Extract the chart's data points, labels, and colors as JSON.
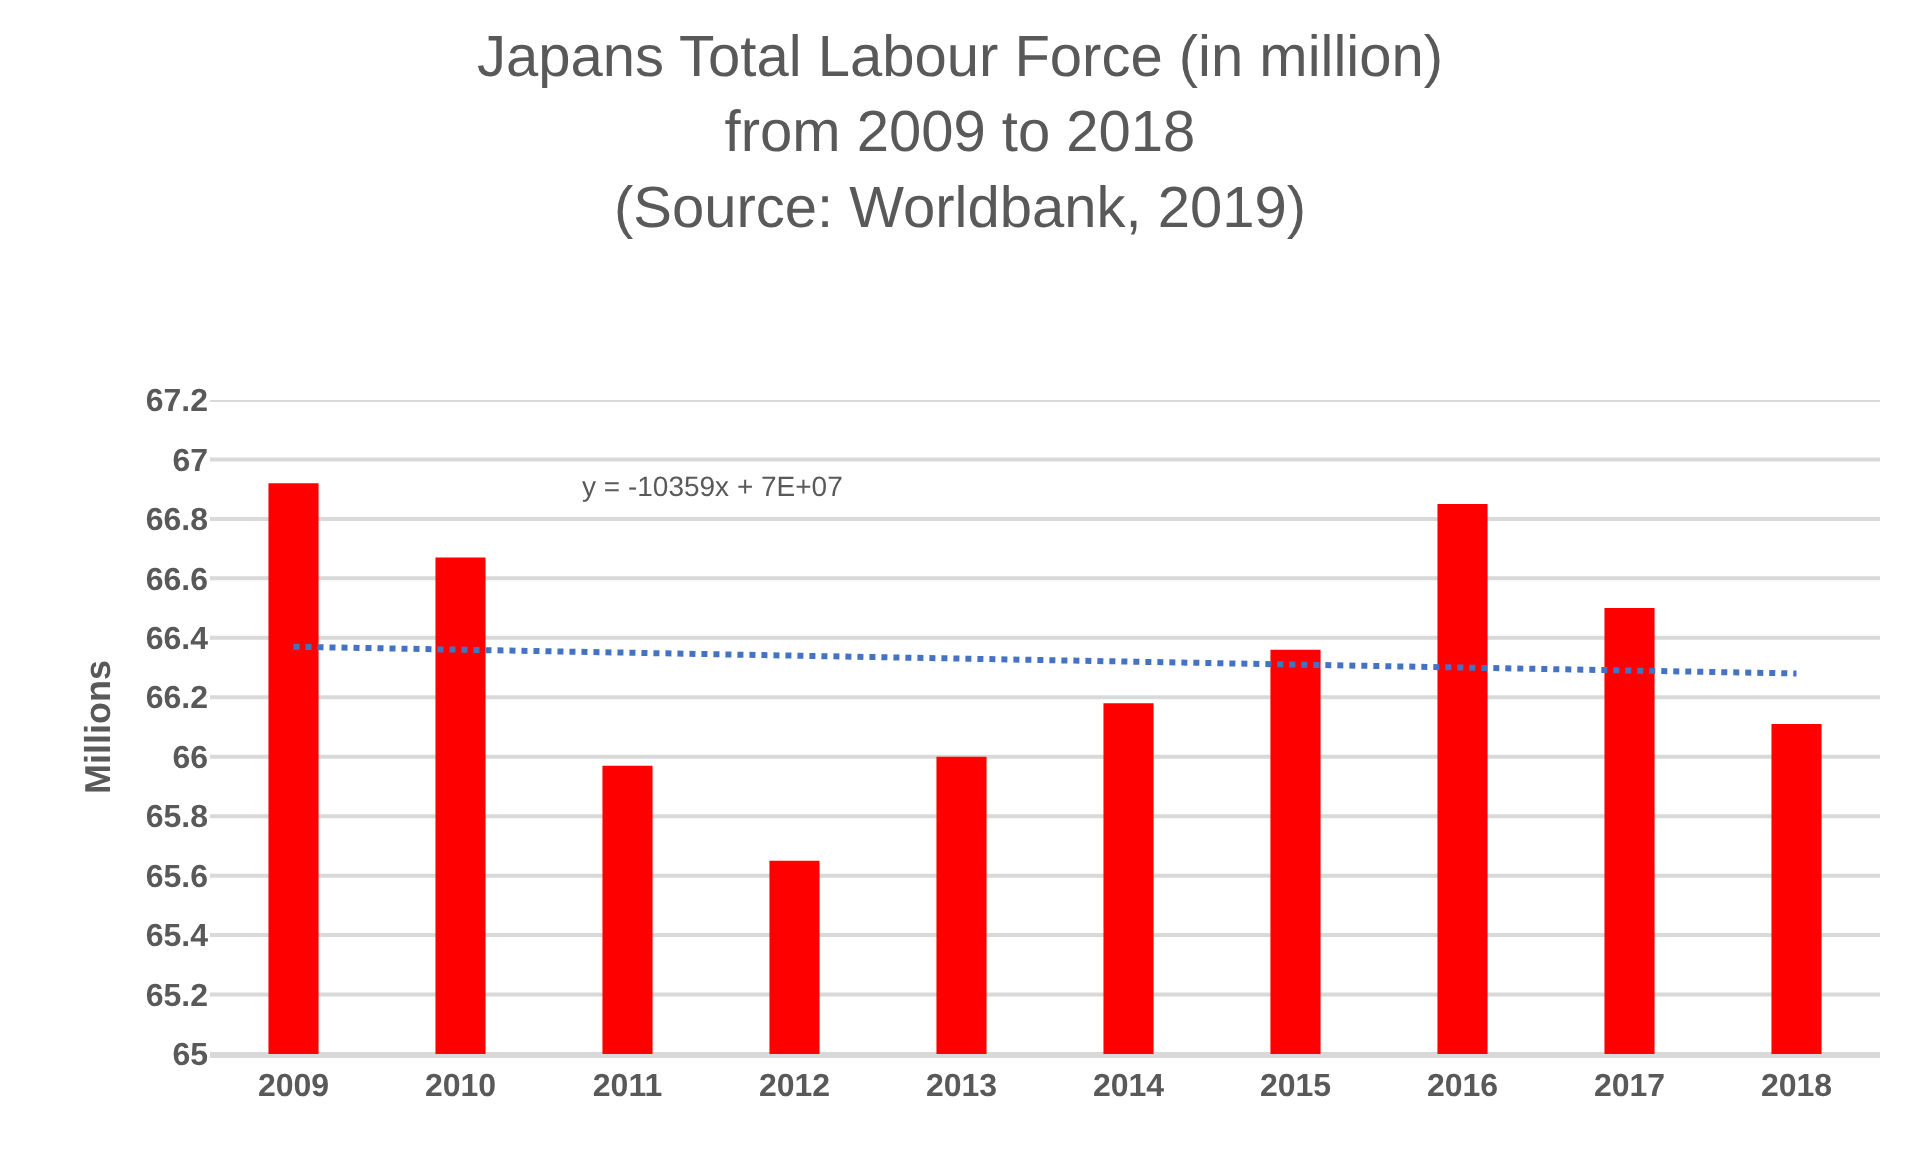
{
  "chart_data": {
    "type": "bar",
    "title": "Japans Total Labour Force (in million)\nfrom 2009 to 2018\n(Source: Worldbank, 2019)",
    "ylabel": "Millions",
    "categories": [
      "2009",
      "2010",
      "2011",
      "2012",
      "2013",
      "2014",
      "2015",
      "2016",
      "2017",
      "2018"
    ],
    "series": [
      {
        "color": "#ff0000",
        "values": [
          66.92,
          66.67,
          65.97,
          65.65,
          66.0,
          66.18,
          66.36,
          66.85,
          66.5,
          66.11
        ]
      },
      {
        "type": "line",
        "color": "#4472c4",
        "line_style": "dotted",
        "marker": "none",
        "values": [
          66.37,
          66.36,
          66.35,
          66.34,
          66.33,
          66.32,
          66.31,
          66.3,
          66.29,
          66.28
        ]
      }
    ],
    "annotations": [
      "y = -10359x + 7E+07"
    ],
    "ylim": [
      65,
      67.2
    ],
    "yticks": [
      65,
      65.2,
      65.4,
      65.6,
      65.8,
      66,
      66.2,
      66.4,
      66.6,
      66.8,
      67,
      67.2
    ],
    "grid": "y",
    "legend": false
  }
}
